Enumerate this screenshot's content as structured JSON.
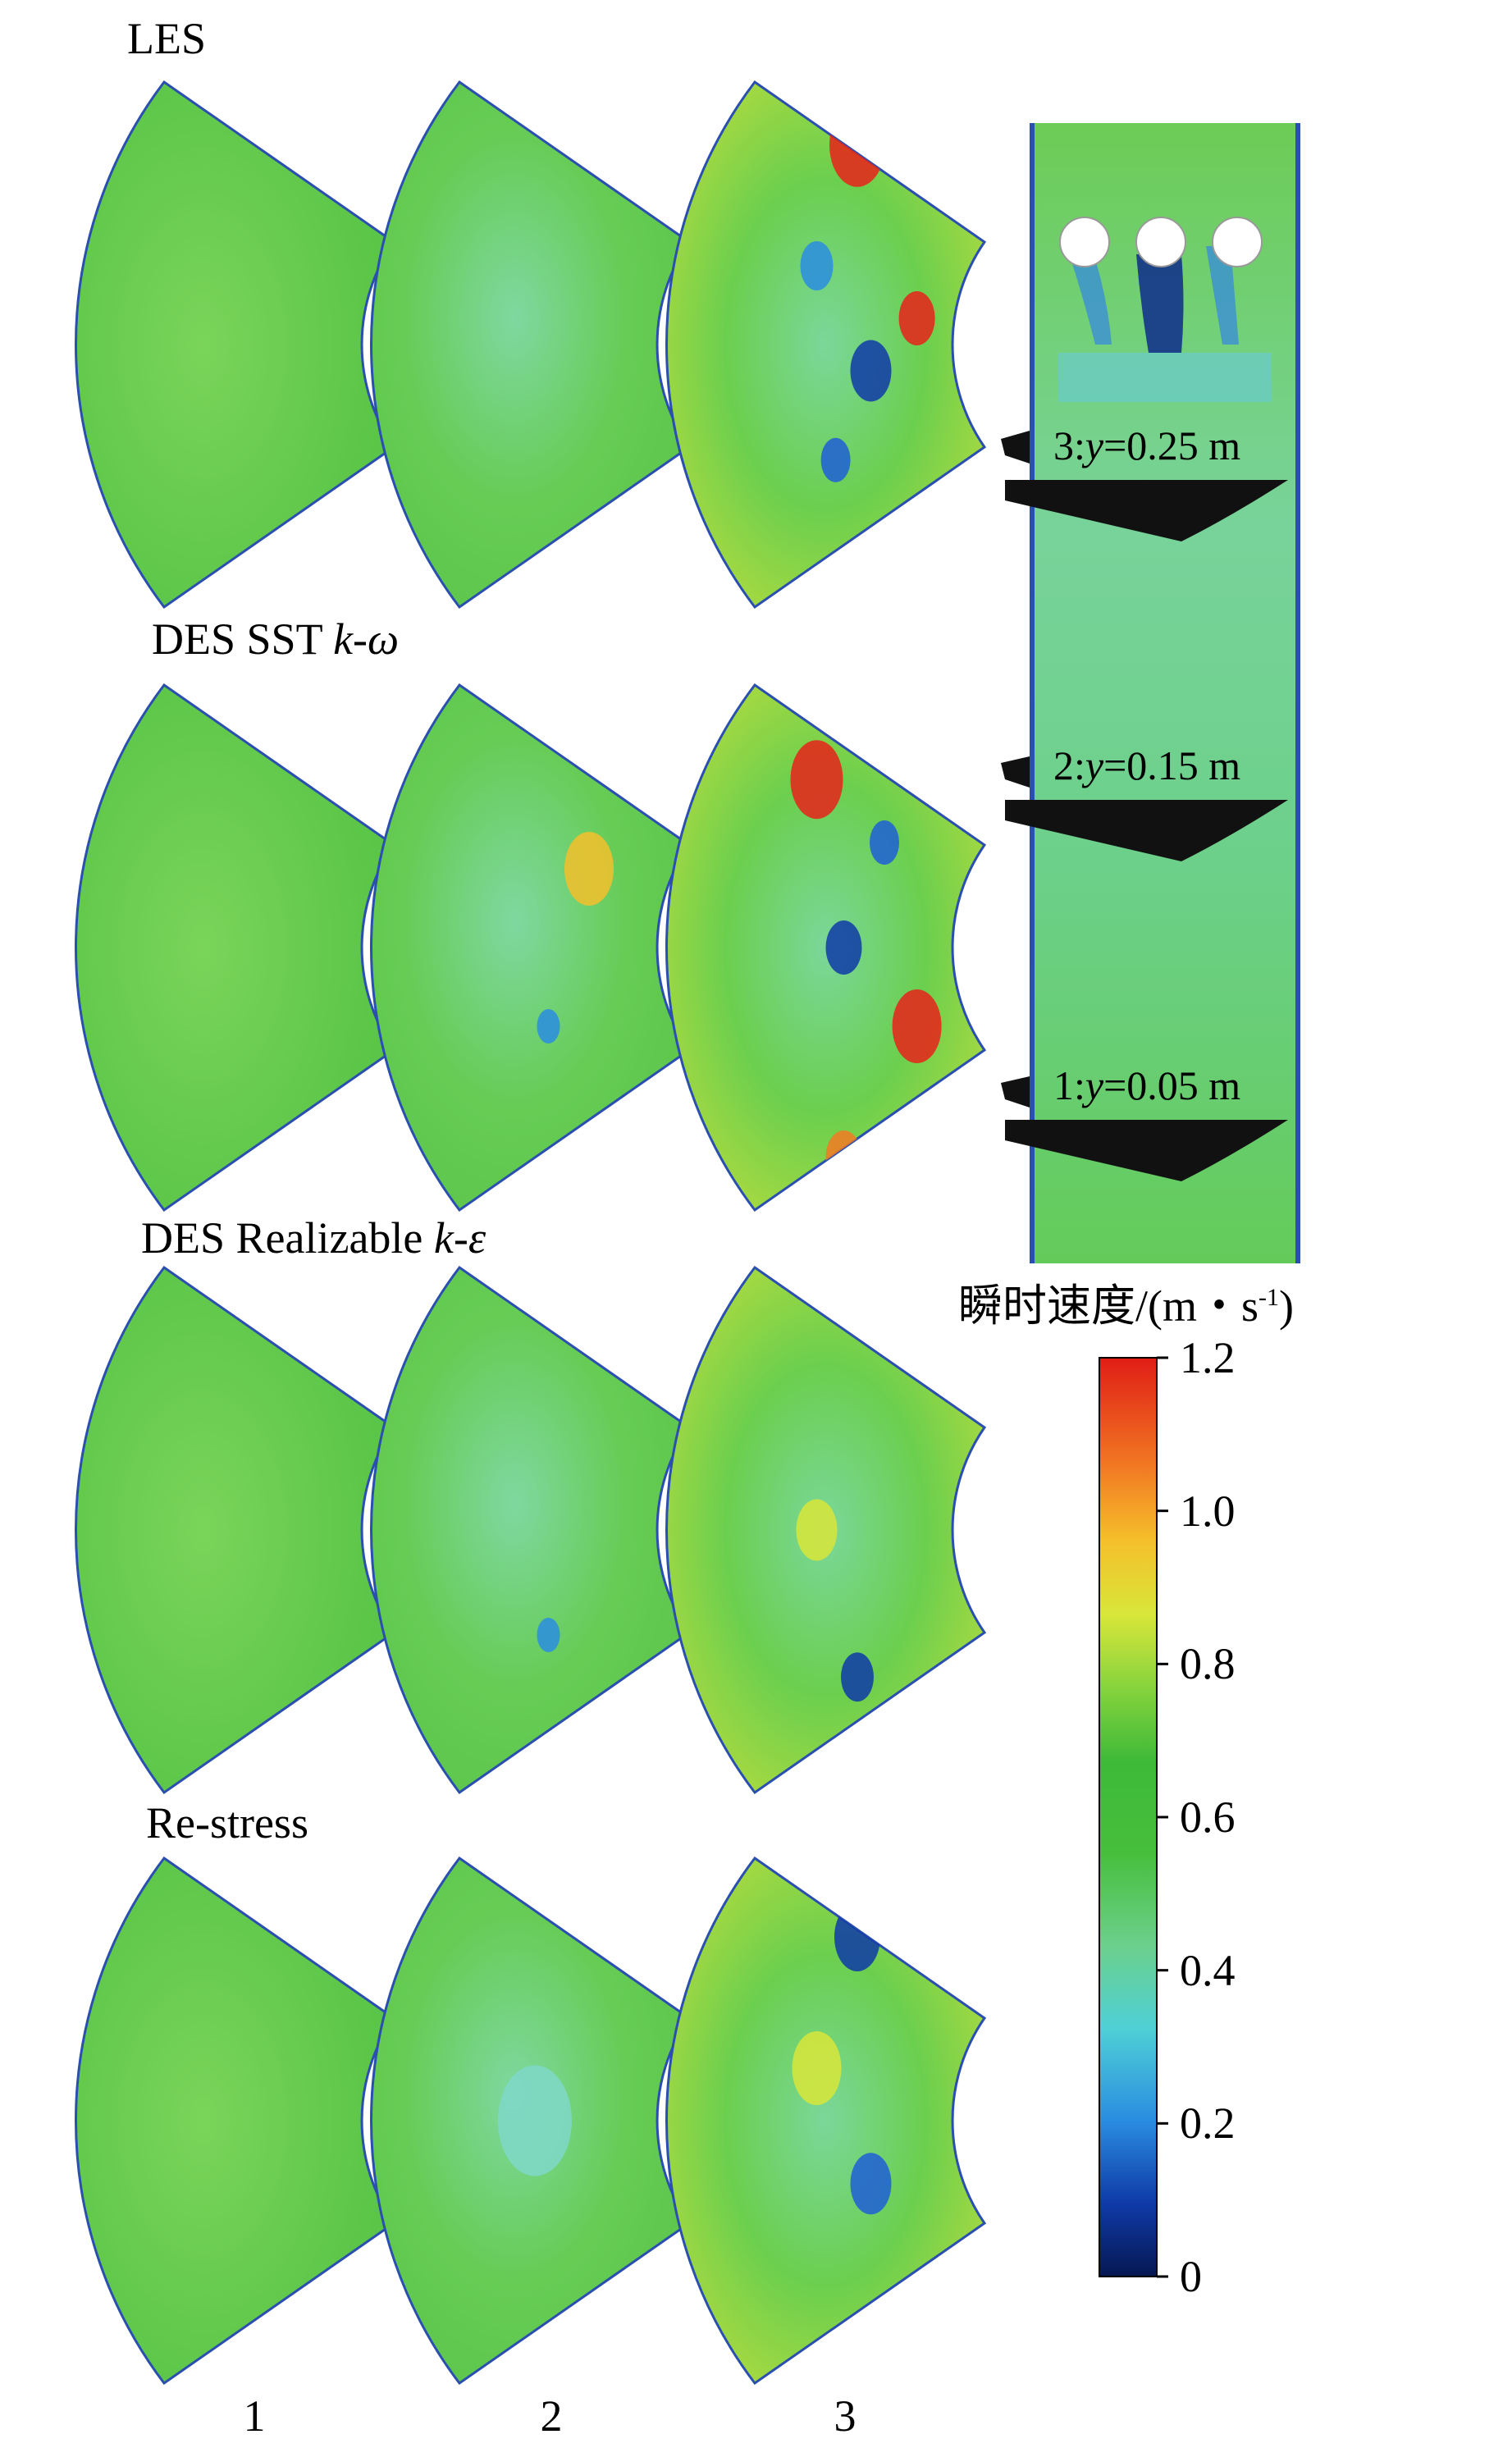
{
  "rows": [
    {
      "id": "les",
      "title": "LES",
      "title_symbol": ""
    },
    {
      "id": "des-sst",
      "title": "DES SST ",
      "title_symbol": "k-ω"
    },
    {
      "id": "des-realizable",
      "title": "DES Realizable ",
      "title_symbol": "k-ε"
    },
    {
      "id": "re-stress",
      "title": "Re-stress",
      "title_symbol": ""
    }
  ],
  "columns": [
    "1",
    "2",
    "3"
  ],
  "planes": [
    {
      "label": "3:y=0.25 m",
      "prefix": "3:",
      "var": "y",
      "suffix": "=0.25 m"
    },
    {
      "label": "2:y=0.15 m",
      "prefix": "2:",
      "var": "y",
      "suffix": "=0.15 m"
    },
    {
      "label": "1:y=0.05 m",
      "prefix": "1:",
      "var": "y",
      "suffix": "=0.05 m"
    }
  ],
  "colorbar": {
    "title": "瞬时速度/(m・s",
    "title_sup": "-1",
    "title_close": ")",
    "ticks": [
      "1.2",
      "1.0",
      "0.8",
      "0.6",
      "0.4",
      "0.2",
      "0"
    ],
    "min": 0,
    "max": 1.2,
    "colors": [
      "#0a1f6e",
      "#1f5fd6",
      "#49c3d8",
      "#5cc94a",
      "#3fb83a",
      "#8fd23a",
      "#e8e83a",
      "#f59a2a",
      "#e8221a"
    ]
  }
}
